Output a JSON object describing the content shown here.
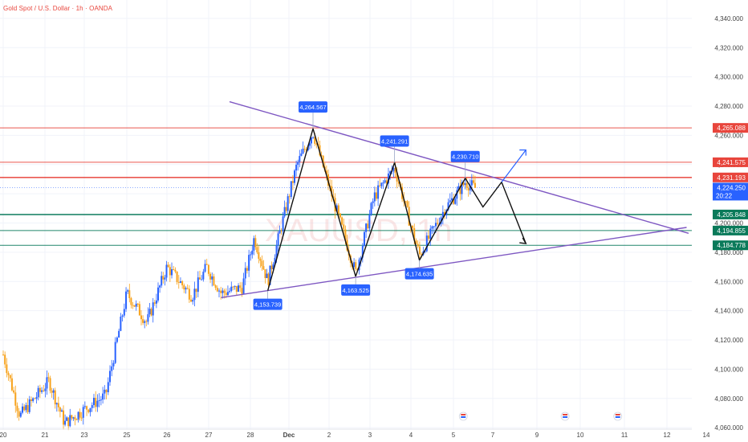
{
  "header": {
    "title": "Gold Spot / U.S. Dollar · 1h · OANDA"
  },
  "watermark": "XAUUSD, 1h",
  "colors": {
    "up_candle": "#2962ff",
    "down_candle": "#f7a21b",
    "resistance": "#e8453c",
    "support": "#0a7a5a",
    "trendline": "#7e57c2",
    "label_bg": "#2962ff",
    "projection_black": "#111111",
    "projection_blue": "#2962ff",
    "current_price": "#2962ff"
  },
  "chart_data": {
    "type": "candlestick",
    "y_axis_ticks": [
      "4,340.000",
      "4,320.000",
      "4,300.000",
      "4,280.000",
      "4,260.000",
      "4,240.000",
      "4,220.000",
      "4,200.000",
      "4,180.000",
      "4,160.000",
      "4,140.000",
      "4,120.000",
      "4,100.000",
      "4,080.000",
      "4,060.000"
    ],
    "y_tick_values": [
      4340,
      4320,
      4300,
      4280,
      4260,
      4240,
      4220,
      4200,
      4180,
      4160,
      4140,
      4120,
      4100,
      4080,
      4060
    ],
    "ylim": [
      4059,
      4346
    ],
    "x_axis_labels": [
      {
        "label": "20",
        "day": 0
      },
      {
        "label": "21",
        "day": 1
      },
      {
        "label": "23",
        "day": 2
      },
      {
        "label": "25",
        "day": 3
      },
      {
        "label": "26",
        "day": 4
      },
      {
        "label": "27",
        "day": 5
      },
      {
        "label": "28",
        "day": 6
      },
      {
        "label": "Dec",
        "day": 7,
        "bold": true
      },
      {
        "label": "2",
        "day": 8
      },
      {
        "label": "3",
        "day": 9
      },
      {
        "label": "4",
        "day": 10
      },
      {
        "label": "5",
        "day": 11
      },
      {
        "label": "7",
        "day": 12
      },
      {
        "label": "9",
        "day": 13
      },
      {
        "label": "10",
        "day": 14
      },
      {
        "label": "11",
        "day": 15
      },
      {
        "label": "12",
        "day": 16
      },
      {
        "label": "14",
        "day": 17
      }
    ],
    "horizontal_levels": [
      {
        "name": "resistance-1",
        "value": 4265.088,
        "label": "4,265.088",
        "kind": "resistance"
      },
      {
        "name": "resistance-2",
        "value": 4241.575,
        "label": "4,241.575",
        "kind": "resistance"
      },
      {
        "name": "resistance-3",
        "value": 4231.193,
        "label": "4,231.193",
        "kind": "resistance"
      },
      {
        "name": "support-1",
        "value": 4205.848,
        "label": "4,205.848",
        "kind": "support"
      },
      {
        "name": "support-2",
        "value": 4194.855,
        "label": "4,194.855",
        "kind": "support"
      },
      {
        "name": "support-3",
        "value": 4184.778,
        "label": "4,184.778",
        "kind": "support"
      }
    ],
    "current_price": {
      "value": 4224.25,
      "label": "4,224.250",
      "countdown": "20:22"
    },
    "pivot_labels": [
      {
        "label": "4,264.567",
        "day": 7.6,
        "value": 4264.567,
        "position": "above"
      },
      {
        "label": "4,241.291",
        "day": 9.6,
        "value": 4241.291,
        "position": "above"
      },
      {
        "label": "4,230.710",
        "day": 11.3,
        "value": 4230.71,
        "position": "above"
      },
      {
        "label": "4,153.739",
        "day": 6.45,
        "value": 4153.739,
        "position": "below"
      },
      {
        "label": "4,163.525",
        "day": 8.65,
        "value": 4163.525,
        "position": "below"
      },
      {
        "label": "4,174.635",
        "day": 10.2,
        "value": 4174.635,
        "position": "below"
      }
    ],
    "trendlines": [
      {
        "name": "upper-trendline",
        "from": {
          "day": 5.5,
          "value": 4283
        },
        "to": {
          "day": 16.55,
          "value": 4193
        }
      },
      {
        "name": "lower-trendline",
        "from": {
          "day": 5.3,
          "value": 4149
        },
        "to": {
          "day": 16.5,
          "value": 4197
        }
      }
    ],
    "zigzag": [
      {
        "day": 6.45,
        "value": 4153.7
      },
      {
        "day": 7.6,
        "value": 4264.6
      },
      {
        "day": 8.65,
        "value": 4163.5
      },
      {
        "day": 9.6,
        "value": 4241.3
      },
      {
        "day": 10.2,
        "value": 4174.6
      },
      {
        "day": 11.3,
        "value": 4230.7
      },
      {
        "day": 11.75,
        "value": 4211
      },
      {
        "day": 12.2,
        "value": 4228
      },
      {
        "day": 12.75,
        "value": 4186
      }
    ],
    "projection_up": [
      {
        "day": 12.2,
        "value": 4228
      },
      {
        "day": 12.75,
        "value": 4250
      }
    ],
    "event_icon_days": [
      11.25,
      13.65,
      14.85
    ],
    "candles_note": "approximate hourly OHLC candles, Nov 19 to Dec 5"
  }
}
